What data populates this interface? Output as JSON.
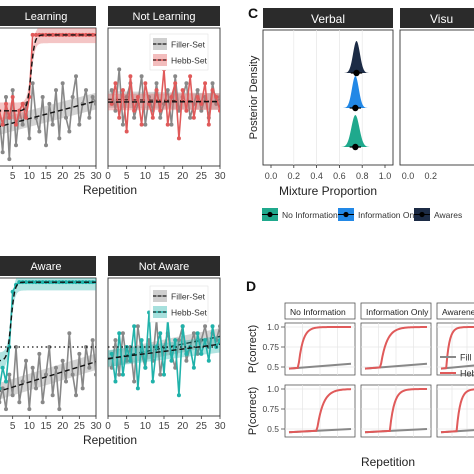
{
  "panel_letters": {
    "c": "C",
    "d": "D"
  },
  "chart_data": [
    {
      "id": "A",
      "type": "line",
      "facets": [
        "Learning",
        "Not Learning"
      ],
      "xlabel": "Repetition",
      "ylabel": "",
      "xticks": [
        5,
        10,
        15,
        20,
        25,
        30
      ],
      "xticks_not_learning": [
        0,
        5,
        10,
        15,
        20,
        25,
        30
      ],
      "xlim": [
        0,
        30
      ],
      "ylim": [
        0,
        1
      ],
      "legend": {
        "placement": "inside-top-right",
        "entries": [
          "Filler-Set",
          "Hebb-Set"
        ]
      },
      "colors": {
        "filler": "#888888",
        "hebb": "#e05a5a"
      },
      "series": [
        {
          "name": "Filler-Set",
          "panel": "Learning",
          "x": [
            1,
            2,
            3,
            4,
            5,
            6,
            7,
            8,
            9,
            10,
            11,
            12,
            13,
            14,
            15,
            16,
            17,
            18,
            19,
            20,
            21,
            22,
            23,
            24,
            25,
            26,
            27,
            28,
            29,
            30
          ],
          "values": [
            0.35,
            0.1,
            0.5,
            0.05,
            0.55,
            0.15,
            0.4,
            0.3,
            0.45,
            0.2,
            0.6,
            0.35,
            0.25,
            0.5,
            0.15,
            0.45,
            0.3,
            0.55,
            0.2,
            0.6,
            0.35,
            0.25,
            0.5,
            0.65,
            0.3,
            0.45,
            0.55,
            0.35,
            0.5,
            0.45
          ]
        },
        {
          "name": "Hebb-Set",
          "panel": "Learning",
          "x": [
            1,
            2,
            3,
            4,
            5,
            6,
            7,
            8,
            9,
            10,
            11,
            12,
            13,
            14,
            15,
            16,
            17,
            18,
            19,
            20,
            21,
            22,
            23,
            24,
            25,
            26,
            27,
            28,
            29,
            30
          ],
          "values": [
            0.4,
            0.3,
            0.45,
            0.35,
            0.5,
            0.3,
            0.4,
            0.45,
            0.35,
            0.5,
            0.95,
            0.95,
            0.95,
            0.95,
            0.95,
            0.95,
            0.95,
            0.95,
            0.95,
            0.95,
            0.95,
            0.95,
            0.95,
            0.95,
            0.95,
            0.95,
            0.95,
            0.95,
            0.95,
            0.95
          ]
        },
        {
          "name": "Filler-Set",
          "panel": "Not Learning",
          "x": [
            1,
            2,
            3,
            4,
            5,
            6,
            7,
            8,
            9,
            10,
            11,
            12,
            13,
            14,
            15,
            16,
            17,
            18,
            19,
            20,
            21,
            22,
            23,
            24,
            25,
            26,
            27,
            28,
            29,
            30
          ],
          "values": [
            0.55,
            0.4,
            0.7,
            0.3,
            0.5,
            0.6,
            0.35,
            0.45,
            0.65,
            0.3,
            0.5,
            0.4,
            0.6,
            0.35,
            0.45,
            0.55,
            0.3,
            0.65,
            0.4,
            0.5,
            0.6,
            0.35,
            0.45,
            0.55,
            0.4,
            0.5,
            0.35,
            0.6,
            0.45,
            0.5
          ]
        },
        {
          "name": "Hebb-Set",
          "panel": "Not Learning",
          "x": [
            1,
            2,
            3,
            4,
            5,
            6,
            7,
            8,
            9,
            10,
            11,
            12,
            13,
            14,
            15,
            16,
            17,
            18,
            19,
            20,
            21,
            22,
            23,
            24,
            25,
            26,
            27,
            28,
            29,
            30
          ],
          "values": [
            0.45,
            0.6,
            0.35,
            0.55,
            0.25,
            0.65,
            0.4,
            0.5,
            0.3,
            0.6,
            0.45,
            0.35,
            0.55,
            0.4,
            0.7,
            0.3,
            0.5,
            0.6,
            0.2,
            0.55,
            0.4,
            0.65,
            0.35,
            0.5,
            0.45,
            0.6,
            0.3,
            0.55,
            0.5,
            0.4
          ]
        }
      ]
    },
    {
      "id": "B",
      "type": "line",
      "facets": [
        "Aware",
        "Not Aware"
      ],
      "xlabel": "Repetition",
      "ylabel": "",
      "xticks": [
        5,
        10,
        15,
        20,
        25,
        30
      ],
      "xticks_not_aware": [
        0,
        5,
        10,
        15,
        20,
        25,
        30
      ],
      "xlim": [
        0,
        30
      ],
      "ylim": [
        0,
        1
      ],
      "legend": {
        "placement": "inside-top-right",
        "entries": [
          "Filler-Set",
          "Hebb-Set"
        ]
      },
      "colors": {
        "filler": "#888888",
        "hebb": "#20b2aa"
      },
      "series": [
        {
          "name": "Filler-Set",
          "panel": "Aware",
          "x": [
            1,
            2,
            3,
            4,
            5,
            6,
            7,
            8,
            9,
            10,
            11,
            12,
            13,
            14,
            15,
            16,
            17,
            18,
            19,
            20,
            21,
            22,
            23,
            24,
            25,
            26,
            27,
            28,
            29,
            30
          ],
          "values": [
            0.1,
            0.2,
            0.05,
            0.3,
            0.15,
            0.5,
            0.1,
            0.25,
            0.4,
            0.05,
            0.35,
            0.2,
            0.45,
            0.1,
            0.3,
            0.5,
            0.15,
            0.35,
            0.05,
            0.4,
            0.25,
            0.6,
            0.3,
            0.15,
            0.45,
            0.2,
            0.5,
            0.35,
            0.55,
            0.3
          ]
        },
        {
          "name": "Hebb-Set",
          "panel": "Aware",
          "x": [
            1,
            2,
            3,
            4,
            5,
            6,
            7,
            8,
            9,
            10,
            11,
            12,
            13,
            14,
            15,
            16,
            17,
            18,
            19,
            20,
            21,
            22,
            23,
            24,
            25,
            26,
            27,
            28,
            29,
            30
          ],
          "values": [
            0.2,
            0.35,
            0.25,
            0.5,
            0.9,
            0.95,
            0.97,
            0.97,
            0.97,
            0.97,
            0.97,
            0.97,
            0.97,
            0.97,
            0.97,
            0.97,
            0.97,
            0.97,
            0.97,
            0.97,
            0.97,
            0.97,
            0.97,
            0.97,
            0.97,
            0.97,
            0.97,
            0.97,
            0.97,
            0.97
          ]
        },
        {
          "name": "Filler-Set",
          "panel": "Not Aware",
          "x": [
            1,
            2,
            3,
            4,
            5,
            6,
            7,
            8,
            9,
            10,
            11,
            12,
            13,
            14,
            15,
            16,
            17,
            18,
            19,
            20,
            21,
            22,
            23,
            24,
            25,
            26,
            27,
            28,
            29,
            30
          ],
          "values": [
            0.35,
            0.55,
            0.3,
            0.6,
            0.4,
            0.5,
            0.25,
            0.65,
            0.45,
            0.35,
            0.55,
            0.4,
            0.7,
            0.3,
            0.5,
            0.6,
            0.45,
            0.35,
            0.55,
            0.65,
            0.4,
            0.5,
            0.6,
            0.45,
            0.55,
            0.65,
            0.5,
            0.6,
            0.55,
            0.65
          ]
        },
        {
          "name": "Hebb-Set",
          "panel": "Not Aware",
          "x": [
            1,
            2,
            3,
            4,
            5,
            6,
            7,
            8,
            9,
            10,
            11,
            12,
            13,
            14,
            15,
            16,
            17,
            18,
            19,
            20,
            21,
            22,
            23,
            24,
            25,
            26,
            27,
            28,
            29,
            30
          ],
          "values": [
            0.45,
            0.25,
            0.6,
            0.3,
            0.5,
            0.4,
            0.65,
            0.2,
            0.55,
            0.35,
            0.75,
            0.25,
            0.5,
            0.6,
            0.3,
            0.7,
            0.4,
            0.55,
            0.15,
            0.65,
            0.45,
            0.5,
            0.35,
            0.6,
            0.45,
            0.55,
            0.4,
            0.65,
            0.5,
            0.55
          ]
        }
      ]
    },
    {
      "id": "C",
      "type": "area",
      "facets": [
        "Verbal",
        "Visu"
      ],
      "xlabel": "Mixture Proportion",
      "ylabel": "Posterior Density",
      "xticks": [
        0.0,
        0.2,
        0.4,
        0.6,
        0.8,
        1.0
      ],
      "xlim": [
        0,
        1
      ],
      "legend": {
        "placement": "bottom",
        "entries": [
          "No Information",
          "Information Only",
          "Awares"
        ]
      },
      "colors": {
        "No Information": "#1fa98d",
        "Information Only": "#2288e6",
        "Awares": "#1c2b45"
      },
      "series": [
        {
          "name": "Awares",
          "mean": 0.75,
          "sd": 0.03
        },
        {
          "name": "Information Only",
          "mean": 0.74,
          "sd": 0.03
        },
        {
          "name": "No Information",
          "mean": 0.74,
          "sd": 0.035
        }
      ]
    },
    {
      "id": "D",
      "type": "line",
      "facets": [
        "No Information",
        "Information Only",
        "Awarenes"
      ],
      "xlabel": "Repetition",
      "ylabel": "P(correct)",
      "yticks": [
        0.5,
        0.75,
        1.0
      ],
      "ytick_labels": [
        "0.5",
        "0.75",
        "1.0"
      ],
      "ylim": [
        0.4,
        1.05
      ],
      "legend": {
        "placement": "right",
        "entries": [
          "Fill",
          "Heb"
        ]
      },
      "colors": {
        "filler": "#888888",
        "hebb": "#e05a5a"
      },
      "rows": [
        {
          "panels": [
            {
              "filler": [
                0.48,
                0.54
              ],
              "hebb_onset": 0.15,
              "hebb_rate": 14
            },
            {
              "filler": [
                0.48,
                0.54
              ],
              "hebb_onset": 0.25,
              "hebb_rate": 10
            },
            {
              "filler": [
                0.48,
                0.54
              ],
              "hebb_onset": 0.1,
              "hebb_rate": 16
            }
          ]
        },
        {
          "panels": [
            {
              "filler": [
                0.46,
                0.5
              ],
              "hebb_onset": 0.45,
              "hebb_rate": 10
            },
            {
              "filler": [
                0.46,
                0.5
              ],
              "hebb_onset": 0.4,
              "hebb_rate": 14
            },
            {
              "filler": [
                0.46,
                0.5
              ],
              "hebb_onset": 0.3,
              "hebb_rate": 14
            }
          ]
        }
      ]
    }
  ]
}
